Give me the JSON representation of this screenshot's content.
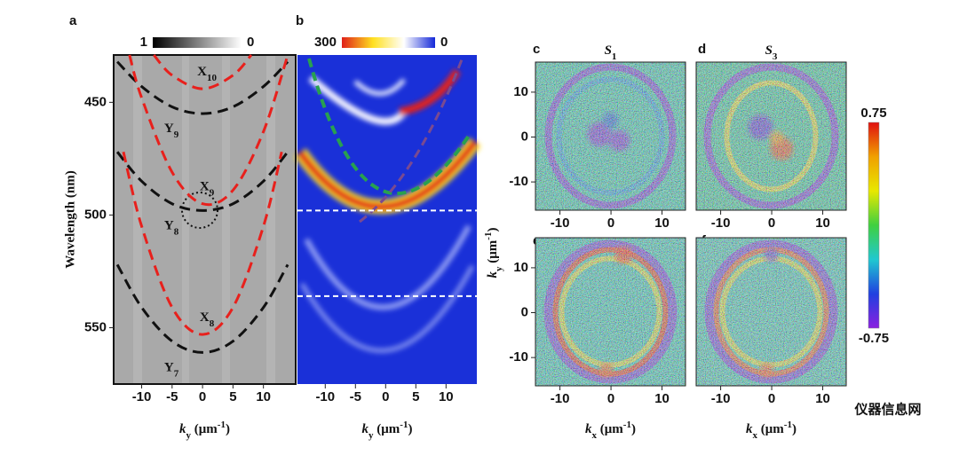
{
  "chart_data": [
    {
      "type": "line",
      "label": "a",
      "ylabel": "Wavelength (nm)",
      "xlabel": {
        "k": "k",
        "sub": "y",
        "unit": " (μm",
        "sup": "-1",
        "end": ")"
      },
      "xlim": [
        -14.6,
        15.3
      ],
      "ylim": [
        429,
        575
      ],
      "y_inverted": true,
      "xticks": [
        -10,
        -5,
        0,
        5,
        10
      ],
      "yticks": [
        450,
        500,
        550
      ],
      "colorbar": {
        "labels": [
          1,
          0
        ],
        "colors": [
          "#000000",
          "#ffffff"
        ]
      },
      "series": [
        {
          "name": "X",
          "name_sub": "10",
          "color": "#e8201c",
          "x": [
            -8,
            -5,
            0,
            5,
            8
          ],
          "values": [
            429,
            438,
            444,
            438,
            429
          ]
        },
        {
          "name": "Y",
          "name_sub": "9",
          "color": "#111111",
          "x": [
            -14,
            -10,
            -5,
            0,
            5,
            10,
            14
          ],
          "values": [
            432,
            443,
            452,
            455,
            452,
            443,
            432
          ]
        },
        {
          "name": "X",
          "name_sub": "9",
          "color": "#e8201c",
          "x": [
            -12,
            -10,
            -5,
            0,
            5,
            10,
            14
          ],
          "values": [
            429,
            448,
            481,
            495,
            489,
            463,
            429
          ]
        },
        {
          "name": "Y",
          "name_sub": "8",
          "color": "#111111",
          "x": [
            -14,
            -10,
            -5,
            0,
            5,
            10,
            14
          ],
          "values": [
            472,
            485,
            495,
            498,
            495,
            485,
            472
          ]
        },
        {
          "name": "X",
          "name_sub": "8",
          "color": "#e8201c",
          "x": [
            -13,
            -10,
            -5,
            0,
            5,
            10,
            13
          ],
          "values": [
            472,
            505,
            541,
            553,
            541,
            505,
            472
          ]
        },
        {
          "name": "Y",
          "name_sub": "7",
          "color": "#111111",
          "x": [
            -14,
            -10,
            -5,
            0,
            5,
            10,
            14
          ],
          "values": [
            522,
            541,
            556,
            561,
            556,
            541,
            522
          ]
        }
      ]
    },
    {
      "type": "image",
      "label": "b",
      "xlabel": {
        "k": "k",
        "sub": "y",
        "unit": " (μm",
        "sup": "-1",
        "end": ")"
      },
      "xlim": [
        -14.6,
        15.1
      ],
      "ylim": [
        429,
        575
      ],
      "y_inverted": true,
      "xticks": [
        -10,
        -5,
        0,
        5,
        10
      ],
      "hlines": [
        498,
        536
      ],
      "colorbar": {
        "labels": [
          300,
          0
        ],
        "colors": [
          "#e0201a",
          "#ffe020",
          "#ffffff",
          "#1428d8"
        ]
      }
    },
    {
      "type": "map",
      "label": "c",
      "title": {
        "text": "S",
        "sub": "1"
      },
      "xlim": [
        -14.8,
        14.6
      ],
      "ylim": [
        -16.3,
        16.7
      ],
      "xticks": [
        -10,
        0,
        10
      ],
      "yticks": [
        10,
        0,
        -10
      ]
    },
    {
      "type": "map",
      "label": "d",
      "title": {
        "text": "S",
        "sub": "3"
      },
      "xlim": [
        -14.8,
        14.6
      ],
      "ylim": [
        -16.3,
        16.7
      ],
      "xticks": [
        -10,
        0,
        10
      ]
    },
    {
      "type": "map",
      "label": "e",
      "ylabel": {
        "k": "k",
        "sub": "y",
        "unit": " (μm",
        "sup": "-1",
        "end": ")"
      },
      "xlabel": {
        "k": "k",
        "sub": "x",
        "unit": " (μm",
        "sup": "-1",
        "end": ")"
      },
      "xlim": [
        -14.8,
        14.6
      ],
      "ylim": [
        -16.3,
        16.7
      ],
      "xticks": [
        -10,
        0,
        10
      ],
      "yticks": [
        10,
        0,
        -10
      ]
    },
    {
      "type": "map",
      "label": "f",
      "xlabel": {
        "k": "k",
        "sub": "x",
        "unit": " (μm",
        "sup": "-1",
        "end": ")"
      },
      "xlim": [
        -14.8,
        14.6
      ],
      "ylim": [
        -16.3,
        16.7
      ],
      "xticks": [
        -10,
        0,
        10
      ]
    }
  ],
  "map_colorbar": {
    "labels": [
      0.75,
      -0.75
    ],
    "colors": [
      "#e01010",
      "#f0a000",
      "#e8e800",
      "#40d040",
      "#20c8d0",
      "#2040e0",
      "#8a20e0"
    ]
  },
  "watermark": "仪器信息网"
}
